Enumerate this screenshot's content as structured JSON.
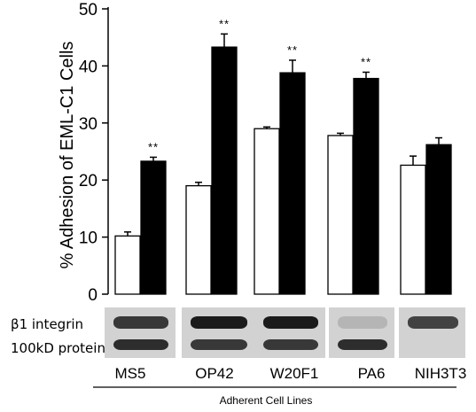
{
  "chart_data": {
    "type": "bar",
    "ylabel": "% Adhesion of EML-C1 Cells",
    "xlabel": "Adherent Cell Lines",
    "ylim": [
      0,
      50
    ],
    "yticks": [
      "0",
      "10",
      "20",
      "30",
      "40",
      "50"
    ],
    "categories": [
      "MS5",
      "OP42",
      "W20F1",
      "PA6",
      "NIH3T3"
    ],
    "series": [
      {
        "color": "#ffffff",
        "values": [
          10.2,
          19.0,
          29.0,
          27.8,
          22.6
        ],
        "errors": [
          0.7,
          0.6,
          0.3,
          0.4,
          1.6
        ]
      },
      {
        "color": "#000000",
        "values": [
          23.3,
          43.3,
          38.8,
          37.8,
          26.2
        ],
        "errors": [
          0.7,
          2.3,
          2.2,
          1.1,
          1.2
        ]
      }
    ],
    "annotations": [
      "**",
      "**",
      "**",
      "**",
      ""
    ],
    "blot_labels": {
      "top": "β1 integrin",
      "bottom": "100kD protein"
    },
    "blot_band_intensity": {
      "top": [
        0.8,
        0.95,
        0.95,
        0.15,
        0.75
      ],
      "bottom": [
        0.85,
        0.8,
        0.8,
        0.85,
        0.0
      ]
    }
  }
}
